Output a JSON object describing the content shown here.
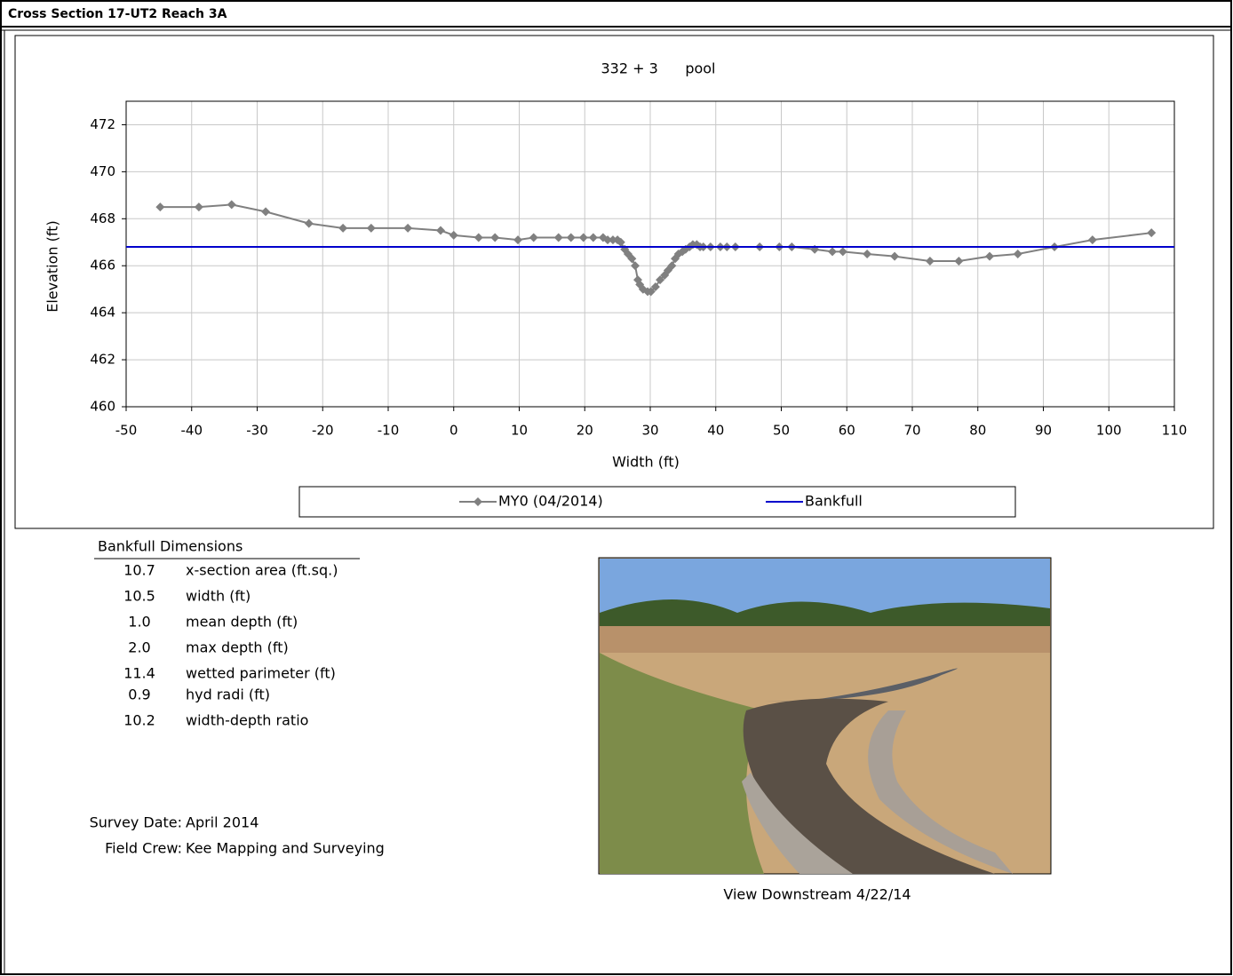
{
  "header": {
    "title": "Cross Section  17-UT2 Reach 3A"
  },
  "chart_data": {
    "type": "line",
    "title": "332 + 3      pool",
    "x_label": "Width (ft)",
    "y_label": "Elevation (ft)",
    "xlim": [
      -50,
      110
    ],
    "ylim": [
      460,
      473
    ],
    "xticks": [
      -50,
      -40,
      -30,
      -20,
      -10,
      0,
      10,
      20,
      30,
      40,
      50,
      60,
      70,
      80,
      90,
      100,
      110
    ],
    "yticks": [
      460,
      462,
      464,
      466,
      468,
      470,
      472
    ],
    "grid": true,
    "series": [
      {
        "name": "MY0 (04/2014)",
        "color": "#808080",
        "marker": "diamond",
        "x": [
          -44.8,
          -38.9,
          -33.9,
          -28.7,
          -22.1,
          -16.9,
          -12.6,
          -7.0,
          -2.0,
          0.0,
          3.8,
          6.3,
          9.8,
          12.2,
          16.0,
          17.9,
          19.8,
          21.3,
          22.8,
          23.5,
          24.3,
          25.0,
          25.5,
          26.1,
          26.6,
          27.2,
          27.7,
          28.1,
          28.4,
          28.9,
          29.6,
          30.1,
          30.8,
          31.5,
          32.2,
          32.7,
          33.3,
          33.8,
          34.3,
          34.9,
          35.4,
          36.0,
          36.5,
          37.1,
          37.6,
          38.1,
          39.2,
          40.7,
          41.7,
          43.0,
          46.7,
          49.7,
          51.6,
          55.1,
          57.8,
          59.4,
          63.1,
          67.3,
          72.7,
          77.1,
          81.8,
          86.1,
          91.7,
          97.5,
          106.5
        ],
        "values": [
          468.5,
          468.5,
          468.6,
          468.3,
          467.8,
          467.6,
          467.6,
          467.6,
          467.5,
          467.3,
          467.2,
          467.2,
          467.1,
          467.2,
          467.2,
          467.2,
          467.2,
          467.2,
          467.2,
          467.1,
          467.1,
          467.1,
          467.0,
          466.7,
          466.5,
          466.3,
          466.0,
          465.4,
          465.2,
          465.0,
          464.9,
          464.9,
          465.1,
          465.4,
          465.6,
          465.8,
          466.0,
          466.3,
          466.5,
          466.6,
          466.7,
          466.8,
          466.9,
          466.9,
          466.8,
          466.8,
          466.8,
          466.8,
          466.8,
          466.8,
          466.8,
          466.8,
          466.8,
          466.7,
          466.6,
          466.6,
          466.5,
          466.4,
          466.2,
          466.2,
          466.4,
          466.5,
          466.8,
          467.1,
          467.4
        ]
      },
      {
        "name": "Bankfull",
        "color": "#0000cc",
        "x": [
          -50,
          110
        ],
        "values": [
          466.8,
          466.8
        ]
      }
    ]
  },
  "dimensions": {
    "title": "Bankfull Dimensions",
    "rows": [
      [
        "10.7",
        "x-section area (ft.sq.)"
      ],
      [
        "10.5",
        "width (ft)"
      ],
      [
        "1.0",
        "mean depth (ft)"
      ],
      [
        "2.0",
        "max depth (ft)"
      ],
      [
        "11.4",
        "wetted parimeter (ft)"
      ],
      [
        "0.9",
        "hyd radi (ft)"
      ],
      [
        "10.2",
        "width-depth ratio"
      ]
    ]
  },
  "survey": {
    "rows": [
      [
        "Survey Date:",
        "April 2014"
      ],
      [
        "Field Crew:",
        "Kee Mapping and Surveying"
      ]
    ]
  },
  "photo": {
    "caption": "View Downstream 4/22/14"
  }
}
